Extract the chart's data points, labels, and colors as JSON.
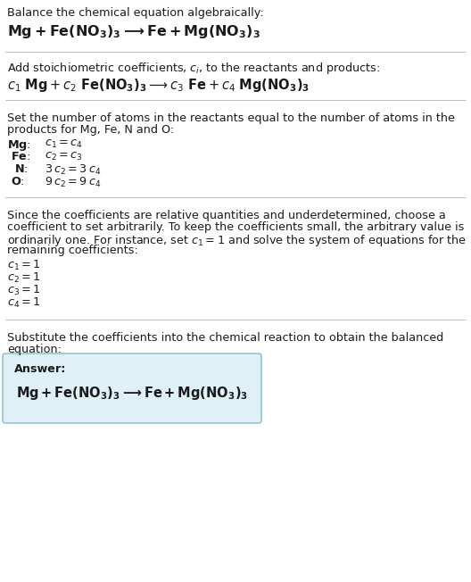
{
  "bg_color": "#ffffff",
  "text_color": "#1a1a1a",
  "separator_color": "#bbbbbb",
  "answer_box_bg": "#dff0f7",
  "answer_box_border": "#7bbccc",
  "figsize": [
    5.28,
    6.52
  ],
  "dpi": 100,
  "sections": {
    "s1_title": "Balance the chemical equation algebraically:",
    "s1_eq": "$\\mathbf{Mg + Fe(NO_3)_3 \\longrightarrow Fe + Mg(NO_3)_3}$",
    "s2_title": "Add stoichiometric coefficients, $c_i$, to the reactants and products:",
    "s2_eq": "$c_1\\ \\mathbf{Mg} + c_2\\ \\mathbf{Fe(NO_3)_3} \\longrightarrow c_3\\ \\mathbf{Fe} + c_4\\ \\mathbf{Mg(NO_3)_3}$",
    "s3_title1": "Set the number of atoms in the reactants equal to the number of atoms in the",
    "s3_title2": "products for Mg, Fe, N and O:",
    "s3_mg": "$\\mathbf{Mg}$:",
    "s3_mg_eq": "$c_1 = c_4$",
    "s3_fe": "$\\mathbf{Fe}$:",
    "s3_fe_eq": "$c_2 = c_3$",
    "s3_n": "$\\mathbf{N}$:",
    "s3_n_eq": "$3\\,c_2 = 3\\,c_4$",
    "s3_o": "$\\mathbf{O}$:",
    "s3_o_eq": "$9\\,c_2 = 9\\,c_4$",
    "s4_line1": "Since the coefficients are relative quantities and underdetermined, choose a",
    "s4_line2": "coefficient to set arbitrarily. To keep the coefficients small, the arbitrary value is",
    "s4_line3": "ordinarily one. For instance, set $c_1 = 1$ and solve the system of equations for the",
    "s4_line4": "remaining coefficients:",
    "s4_c1": "$c_1 = 1$",
    "s4_c2": "$c_2 = 1$",
    "s4_c3": "$c_3 = 1$",
    "s4_c4": "$c_4 = 1$",
    "s5_line1": "Substitute the coefficients into the chemical reaction to obtain the balanced",
    "s5_line2": "equation:",
    "s5_answer_label": "Answer:",
    "s5_answer_eq": "$\\mathbf{Mg + Fe(NO_3)_3 \\longrightarrow Fe + Mg(NO_3)_3}$"
  }
}
